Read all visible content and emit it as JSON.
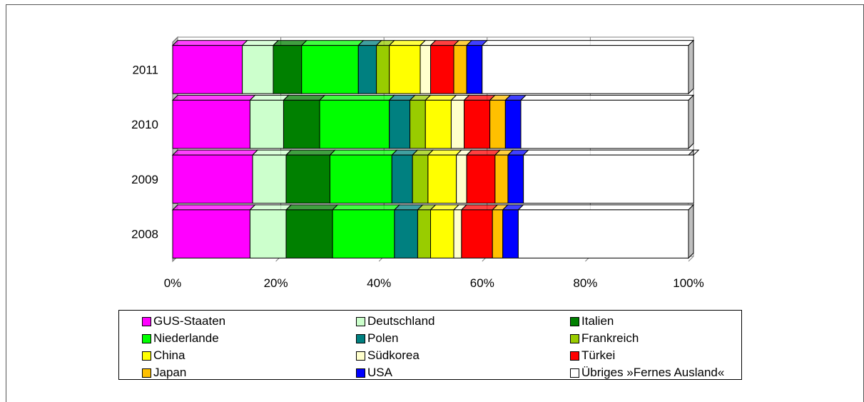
{
  "chart_data": {
    "type": "bar",
    "orientation": "horizontal",
    "stacked": "percent",
    "categories": [
      "2011",
      "2010",
      "2009",
      "2008"
    ],
    "series": [
      {
        "name": "GUS-Staaten",
        "color": "#ff00ff",
        "values": [
          13.5,
          15.0,
          15.5,
          15.0
        ]
      },
      {
        "name": "Deutschland",
        "color": "#ccffcc",
        "values": [
          6.0,
          6.5,
          6.5,
          7.0
        ]
      },
      {
        "name": "Italien",
        "color": "#008000",
        "values": [
          5.5,
          7.0,
          8.5,
          9.0
        ]
      },
      {
        "name": "Niederlande",
        "color": "#00ff00",
        "values": [
          11.0,
          13.5,
          12.0,
          12.0
        ]
      },
      {
        "name": "Polen",
        "color": "#008080",
        "values": [
          3.5,
          4.0,
          4.0,
          4.5
        ]
      },
      {
        "name": "Frankreich",
        "color": "#99cc00",
        "values": [
          2.5,
          3.0,
          3.0,
          2.5
        ]
      },
      {
        "name": "China",
        "color": "#ffff00",
        "values": [
          6.0,
          5.0,
          5.5,
          4.5
        ]
      },
      {
        "name": "Südkorea",
        "color": "#ffffcc",
        "values": [
          2.0,
          2.5,
          2.0,
          1.5
        ]
      },
      {
        "name": "Türkei",
        "color": "#ff0000",
        "values": [
          4.5,
          5.0,
          5.5,
          6.0
        ]
      },
      {
        "name": "Japan",
        "color": "#ffc000",
        "values": [
          2.5,
          3.0,
          2.5,
          2.0
        ]
      },
      {
        "name": "USA",
        "color": "#0000ff",
        "values": [
          3.0,
          3.0,
          3.0,
          3.0
        ]
      },
      {
        "name": "Übriges »Fernes Ausland«",
        "color": "#ffffff",
        "values": [
          40.0,
          32.5,
          33.0,
          33.0
        ]
      }
    ],
    "x_ticks": [
      "0%",
      "20%",
      "40%",
      "60%",
      "80%",
      "100%"
    ],
    "xlim": [
      0,
      100
    ],
    "grid": true,
    "legend_position": "bottom",
    "legend_columns": 3
  }
}
